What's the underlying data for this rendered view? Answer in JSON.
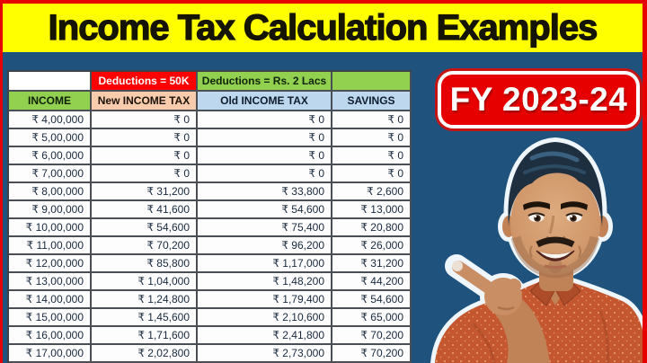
{
  "title": {
    "text": "Income Tax Calculation Examples"
  },
  "badge": {
    "label": "FY 2023-24"
  },
  "table": {
    "deductions_row": [
      "",
      "Deductions = 50K",
      "Deductions = Rs. 2 Lacs",
      ""
    ],
    "columns": [
      "INCOME",
      "New INCOME TAX",
      "Old INCOME TAX",
      "SAVINGS"
    ],
    "rows": [
      [
        "₹ 4,00,000",
        "₹ 0",
        "₹ 0",
        "₹ 0"
      ],
      [
        "₹ 5,00,000",
        "₹ 0",
        "₹ 0",
        "₹ 0"
      ],
      [
        "₹ 6,00,000",
        "₹ 0",
        "₹ 0",
        "₹ 0"
      ],
      [
        "₹ 7,00,000",
        "₹ 0",
        "₹ 0",
        "₹ 0"
      ],
      [
        "₹ 8,00,000",
        "₹ 31,200",
        "₹ 33,800",
        "₹ 2,600"
      ],
      [
        "₹ 9,00,000",
        "₹ 41,600",
        "₹ 54,600",
        "₹ 13,000"
      ],
      [
        "₹ 10,00,000",
        "₹ 54,600",
        "₹ 75,400",
        "₹ 20,800"
      ],
      [
        "₹ 11,00,000",
        "₹ 70,200",
        "₹ 96,200",
        "₹ 26,000"
      ],
      [
        "₹ 12,00,000",
        "₹ 85,800",
        "₹ 1,17,000",
        "₹ 31,200"
      ],
      [
        "₹ 13,00,000",
        "₹ 1,04,000",
        "₹ 1,48,200",
        "₹ 44,200"
      ],
      [
        "₹ 14,00,000",
        "₹ 1,24,800",
        "₹ 1,79,400",
        "₹ 54,600"
      ],
      [
        "₹ 15,00,000",
        "₹ 1,45,600",
        "₹ 2,10,600",
        "₹ 65,000"
      ],
      [
        "₹ 16,00,000",
        "₹ 1,71,600",
        "₹ 2,41,800",
        "₹ 70,200"
      ],
      [
        "₹ 17,00,000",
        "₹ 2,02,800",
        "₹ 2,73,000",
        "₹ 70,200"
      ]
    ]
  },
  "person": {
    "semantic": "presenter-pointing-at-table"
  },
  "colors": {
    "frame_red": "#e60000",
    "banner_yellow": "#ffff00",
    "background_blue": "#20527e",
    "deduction_new_red": "#ff0000",
    "deduction_old_green": "#92d050",
    "income_header_green": "#92d050",
    "new_tax_header_peach": "#f8cbad",
    "old_tax_header_blue": "#bdd7ee",
    "badge_red": "#e60000"
  }
}
